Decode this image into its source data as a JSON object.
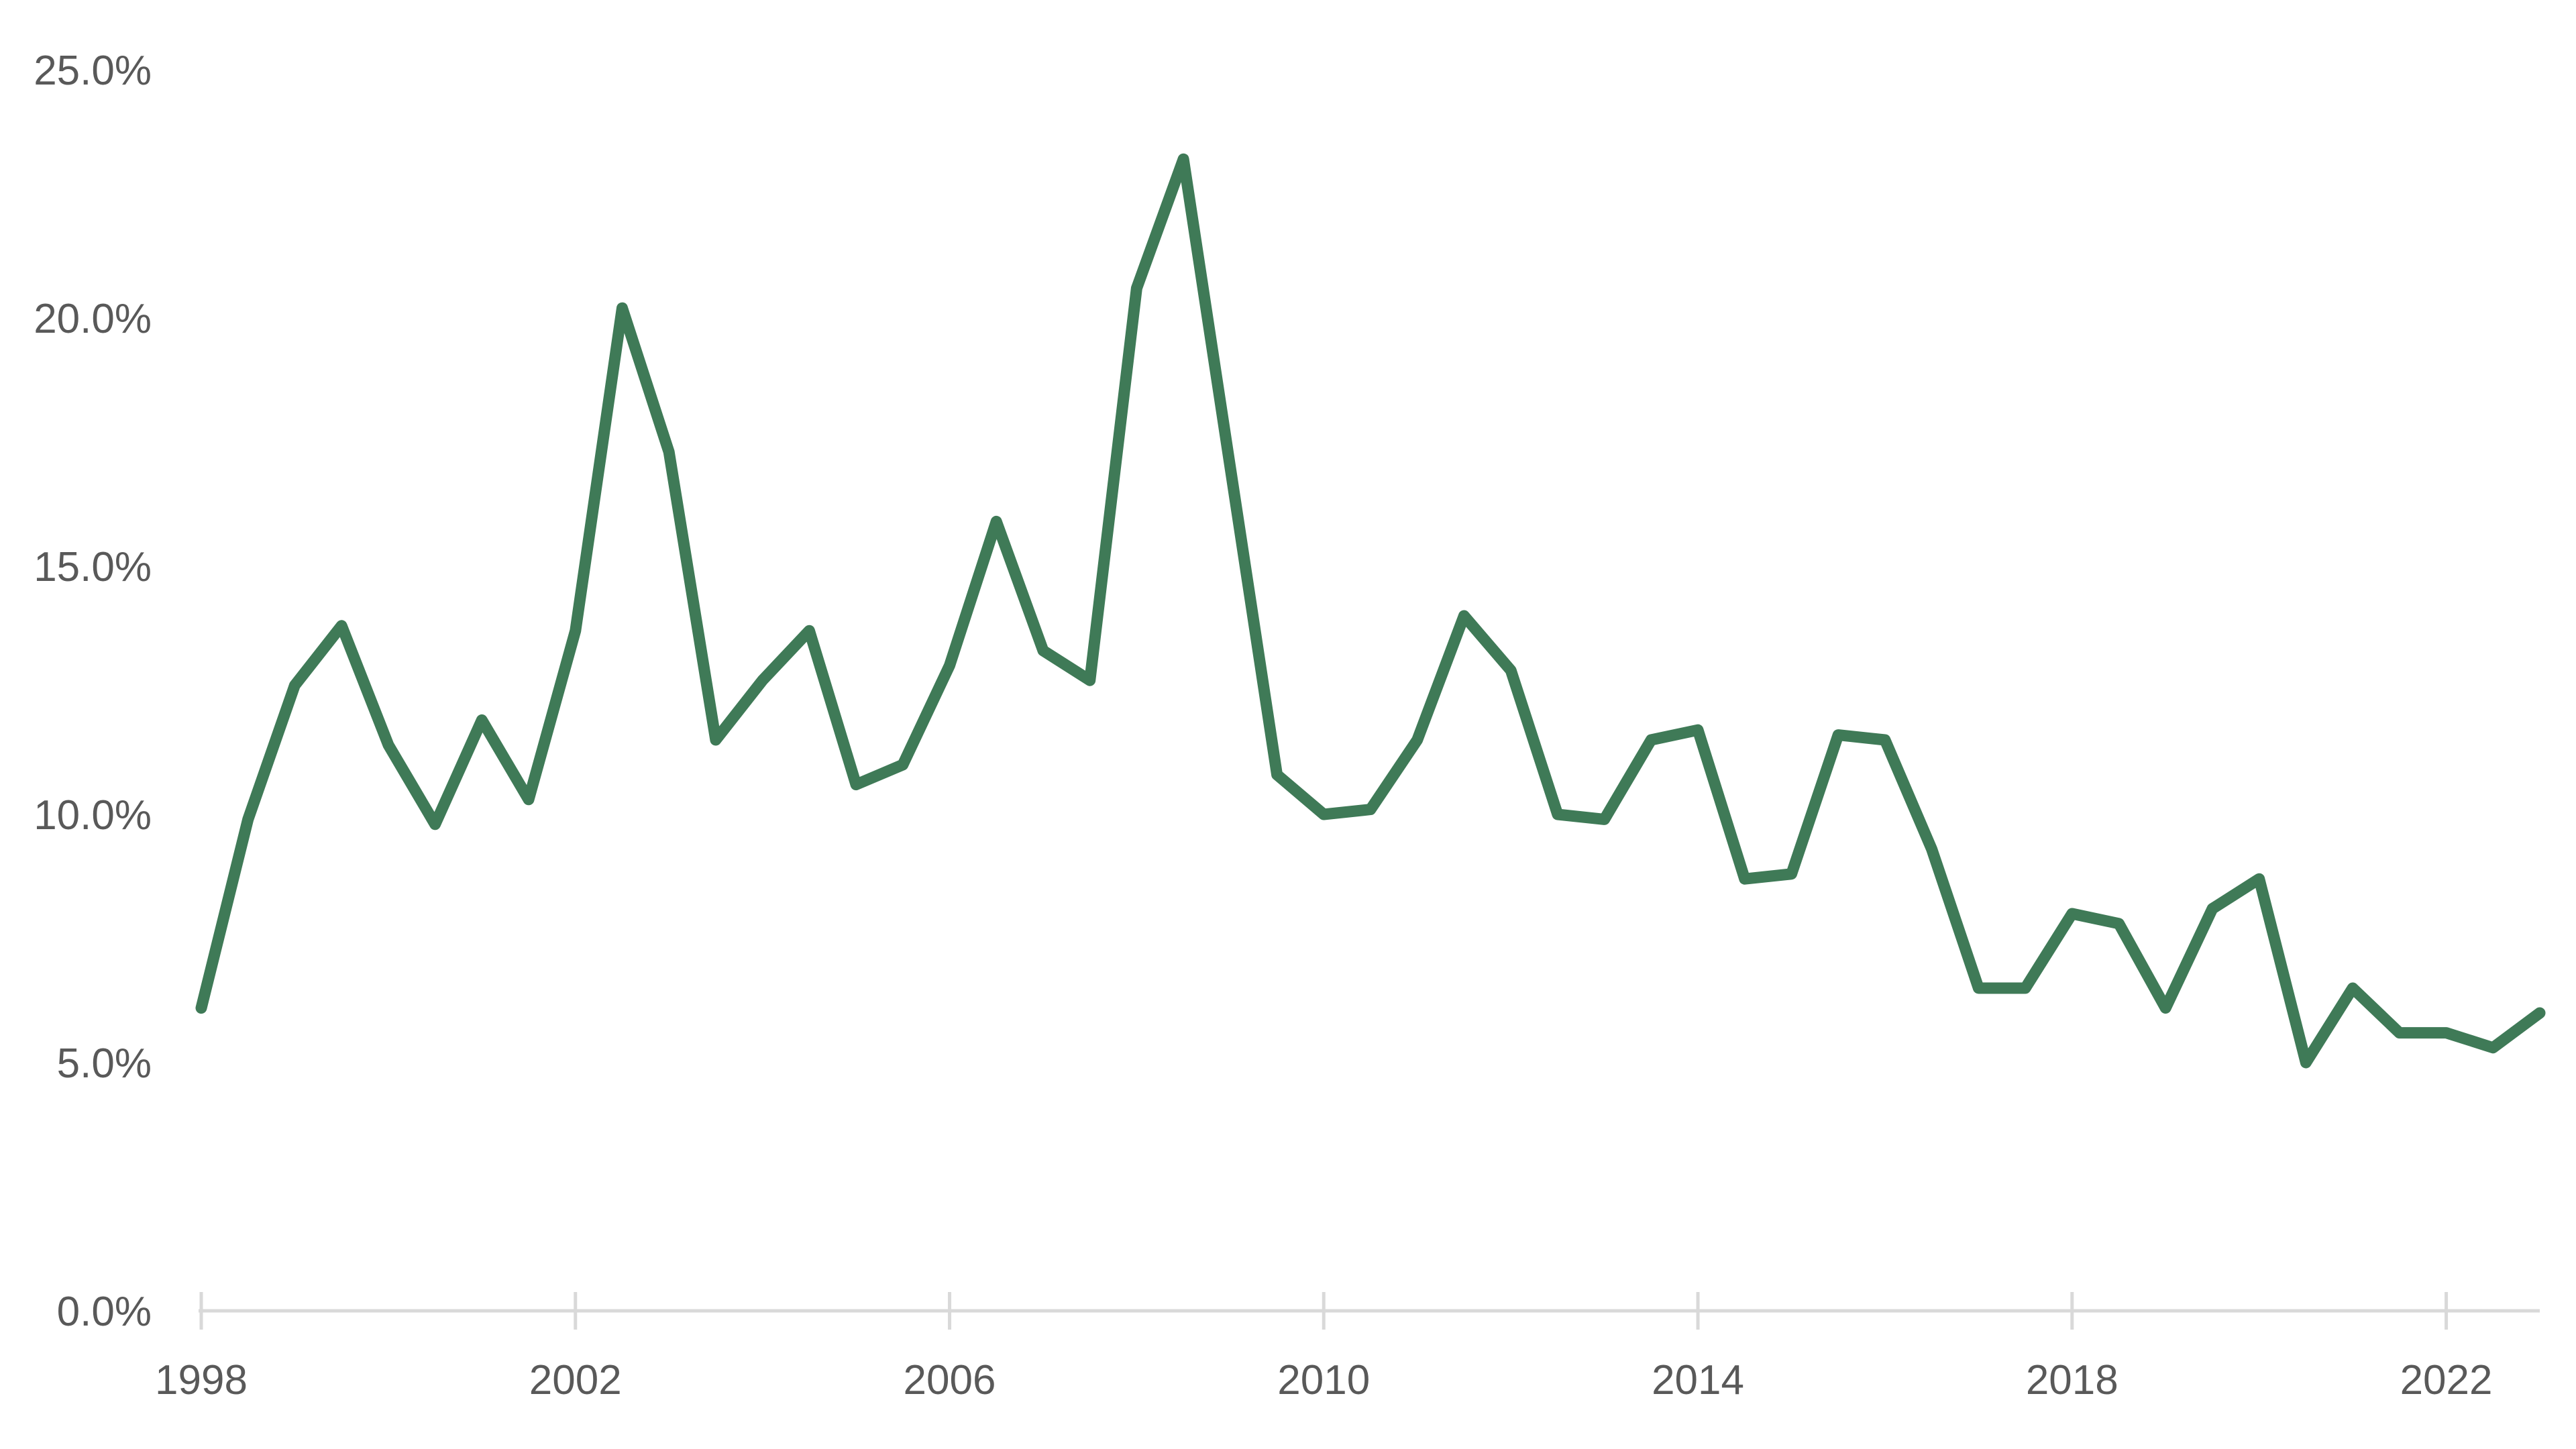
{
  "chart_data": {
    "type": "line",
    "title": "",
    "xlabel": "",
    "ylabel": "",
    "x_tick_labels": [
      "1998",
      "2002",
      "2006",
      "2010",
      "2014",
      "2018",
      "2022"
    ],
    "y_tick_labels": [
      "0.0%",
      "5.0%",
      "10.0%",
      "15.0%",
      "20.0%",
      "25.0%"
    ],
    "xlim": [
      1998.0,
      2023.0
    ],
    "ylim": [
      0,
      25
    ],
    "grid": false,
    "legend": "none",
    "color": "#3f7a57",
    "series": [
      {
        "x": [
          1998.0,
          1998.5,
          1999.0,
          1999.5,
          2000.0,
          2000.5,
          2001.0,
          2001.5,
          2002.0,
          2002.5,
          2003.0,
          2003.5,
          2004.0,
          2004.5,
          2005.0,
          2005.5,
          2006.0,
          2006.5,
          2007.0,
          2007.5,
          2008.0,
          2008.5,
          2009.0,
          2009.5,
          2010.0,
          2010.5,
          2011.0,
          2011.5,
          2012.0,
          2012.5,
          2013.0,
          2013.5,
          2014.0,
          2014.5,
          2015.0,
          2015.5,
          2016.0,
          2016.5,
          2017.0,
          2017.5,
          2018.0,
          2018.5,
          2019.0,
          2019.5,
          2020.0,
          2020.5,
          2021.0,
          2021.5,
          2022.0,
          2022.5,
          2023.0
        ],
        "values": [
          6.1,
          9.9,
          12.6,
          13.8,
          11.4,
          9.8,
          11.9,
          10.3,
          13.7,
          20.2,
          17.3,
          11.5,
          12.7,
          13.7,
          10.6,
          11.0,
          13.0,
          15.9,
          13.3,
          12.7,
          20.6,
          23.2,
          17.0,
          10.8,
          10.0,
          10.1,
          11.5,
          14.0,
          12.9,
          10.0,
          9.9,
          11.5,
          11.7,
          8.7,
          8.8,
          11.6,
          11.5,
          9.3,
          6.5,
          6.5,
          8.0,
          7.8,
          6.1,
          8.1,
          8.7,
          5.0,
          6.5,
          5.6,
          5.6,
          5.3,
          6.0
        ]
      }
    ]
  }
}
